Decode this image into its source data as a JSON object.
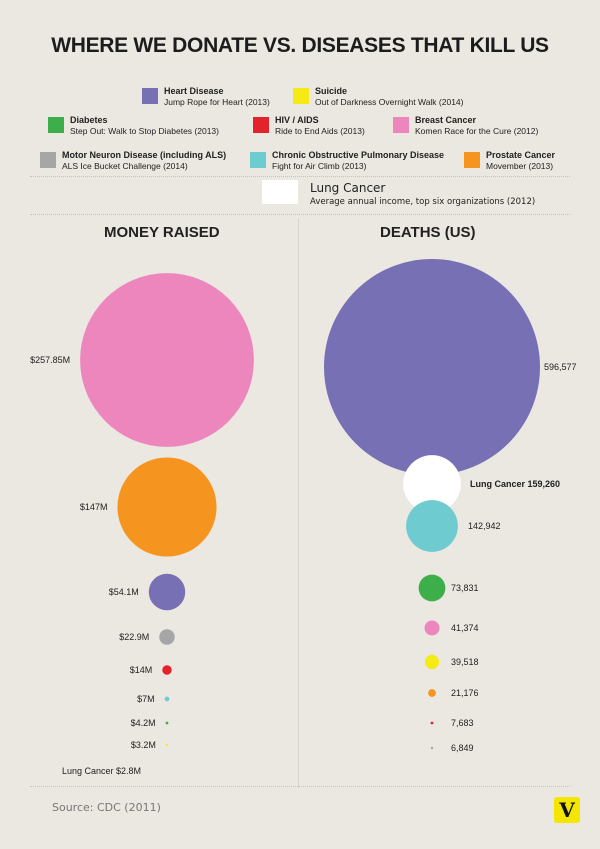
{
  "chart_data": {
    "type": "bubble",
    "title": "WHERE WE DONATE VS. DISEASES THAT KILL US",
    "legend": [
      {
        "disease": "Heart Disease",
        "campaign": "Jump Rope for Heart (2013)",
        "color": "#7770b4"
      },
      {
        "disease": "Suicide",
        "campaign": "Out of Darkness Overnight Walk (2014)",
        "color": "#f6ea16"
      },
      {
        "disease": "Diabetes",
        "campaign": "Step Out: Walk to Stop Diabetes (2013)",
        "color": "#3daf4a"
      },
      {
        "disease": "HIV / AIDS",
        "campaign": "Ride to End Aids (2013)",
        "color": "#e3222b"
      },
      {
        "disease": "Breast Cancer",
        "campaign": "Komen Race for the Cure (2012)",
        "color": "#ee86be"
      },
      {
        "disease": "Motor Neuron Disease (including ALS)",
        "campaign": "ALS Ice Bucket Challenge (2014)",
        "color": "#a6a6a6"
      },
      {
        "disease": "Chronic Obstructive Pulmonary Disease",
        "campaign": "Fight for Air Climb (2013)",
        "color": "#6ecbd0"
      },
      {
        "disease": "Prostate Cancer",
        "campaign": "Movember (2013)",
        "color": "#f5951f"
      },
      {
        "disease": "Lung Cancer",
        "campaign": "Average annual income, top six organizations (2012)",
        "color": "#ffffff"
      }
    ],
    "money_raised": {
      "heading": "MONEY RAISED",
      "unit": "$M",
      "points": [
        {
          "disease": "Breast Cancer",
          "value": 257.85,
          "label": "$257.85M"
        },
        {
          "disease": "Prostate Cancer",
          "value": 147,
          "label": "$147M"
        },
        {
          "disease": "Heart Disease",
          "value": 54.1,
          "label": "$54.1M"
        },
        {
          "disease": "Motor Neuron Disease (including ALS)",
          "value": 22.9,
          "label": "$22.9M"
        },
        {
          "disease": "HIV / AIDS",
          "value": 14,
          "label": "$14M"
        },
        {
          "disease": "Chronic Obstructive Pulmonary Disease",
          "value": 7,
          "label": "$7M"
        },
        {
          "disease": "Diabetes",
          "value": 4.2,
          "label": "$4.2M"
        },
        {
          "disease": "Suicide",
          "value": 3.2,
          "label": "$3.2M"
        },
        {
          "disease": "Lung Cancer",
          "value": 2.8,
          "label": "Lung Cancer $2.8M"
        }
      ]
    },
    "deaths": {
      "heading": "DEATHS (US)",
      "points": [
        {
          "disease": "Heart Disease",
          "value": 596577,
          "label": "596,577"
        },
        {
          "disease": "Lung Cancer",
          "value": 159260,
          "label": "Lung Cancer 159,260"
        },
        {
          "disease": "Chronic Obstructive Pulmonary Disease",
          "value": 142942,
          "label": "142,942"
        },
        {
          "disease": "Diabetes",
          "value": 73831,
          "label": "73,831"
        },
        {
          "disease": "Breast Cancer",
          "value": 41374,
          "label": "41,374"
        },
        {
          "disease": "Suicide",
          "value": 39518,
          "label": "39,518"
        },
        {
          "disease": "Prostate Cancer",
          "value": 21176,
          "label": "21,176"
        },
        {
          "disease": "HIV / AIDS",
          "value": 7683,
          "label": "7,683"
        },
        {
          "disease": "Motor Neuron Disease (including ALS)",
          "value": 6849,
          "label": "6,849"
        }
      ]
    },
    "source": "Source: CDC (2011)",
    "logo": "V"
  }
}
